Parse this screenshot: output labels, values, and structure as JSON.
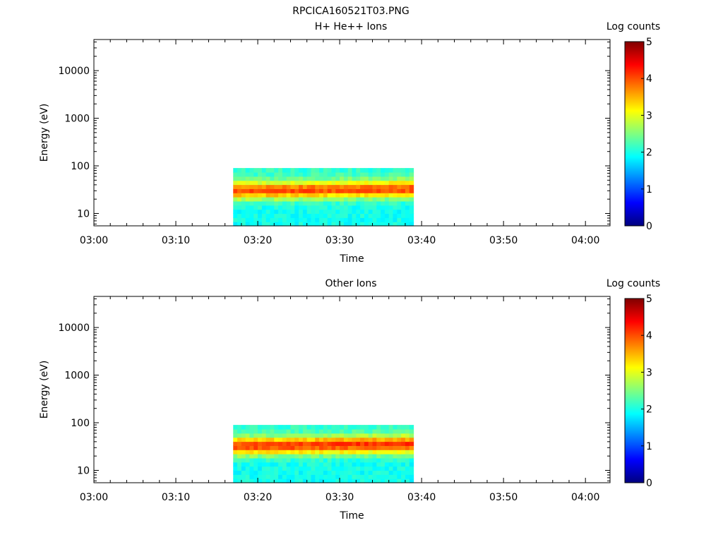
{
  "page_title": "RPCICA160521T03.PNG",
  "chart_data": [
    {
      "type": "heatmap",
      "title": "H+ He++ Ions",
      "xlabel": "Time",
      "ylabel": "Energy (eV)",
      "y_scale": "log",
      "ylim": [
        5.5,
        45000
      ],
      "xlim": [
        "03:00",
        "04:03"
      ],
      "x_ticks": [
        "03:00",
        "03:10",
        "03:20",
        "03:30",
        "03:40",
        "03:50",
        "04:00"
      ],
      "y_ticks": [
        10,
        100,
        1000,
        10000
      ],
      "y_tick_labels": [
        "10",
        "100",
        "1000",
        "10000"
      ],
      "data_time_range": [
        "03:17",
        "03:39"
      ],
      "data_energy_range_eV": [
        5.5,
        90
      ],
      "peak_energy_eV": 30,
      "peak_log_counts": 4.0,
      "colorbar": {
        "label": "Log counts",
        "range": [
          0,
          5
        ],
        "ticks": [
          "0",
          "1",
          "2",
          "3",
          "4",
          "5"
        ]
      }
    },
    {
      "type": "heatmap",
      "title": "Other Ions",
      "xlabel": "Time",
      "ylabel": "Energy (eV)",
      "y_scale": "log",
      "ylim": [
        5.5,
        45000
      ],
      "xlim": [
        "03:00",
        "04:03"
      ],
      "x_ticks": [
        "03:00",
        "03:10",
        "03:20",
        "03:30",
        "03:40",
        "03:50",
        "04:00"
      ],
      "y_ticks": [
        10,
        100,
        1000,
        10000
      ],
      "y_tick_labels": [
        "10",
        "100",
        "1000",
        "10000"
      ],
      "data_time_range": [
        "03:17",
        "03:39"
      ],
      "data_energy_range_eV": [
        5.5,
        90
      ],
      "peak_energy_eV": 32,
      "peak_log_counts": 4.2,
      "colorbar": {
        "label": "Log counts",
        "range": [
          0,
          5
        ],
        "ticks": [
          "0",
          "1",
          "2",
          "3",
          "4",
          "5"
        ]
      }
    }
  ]
}
